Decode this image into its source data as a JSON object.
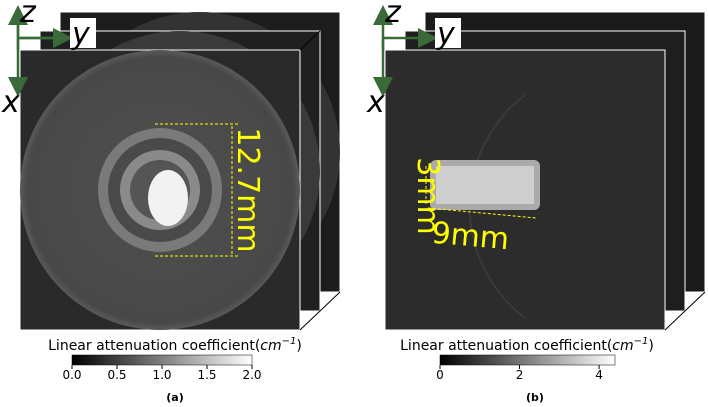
{
  "panels": [
    {
      "caption": "(a)",
      "axes": {
        "z": "z",
        "y": "y",
        "x": "x"
      },
      "annotations": [
        "12.7mm"
      ],
      "colorbar": {
        "label": "Linear attenuation coefficient(",
        "unit": "cm",
        "exponent": "−1",
        "close": ")",
        "lim": [
          0,
          2
        ],
        "ticks": [
          {
            "value": 0,
            "label": "0.0"
          },
          {
            "value": 0.5,
            "label": "0.5"
          },
          {
            "value": 1,
            "label": "1.0"
          },
          {
            "value": 1.5,
            "label": "1.5"
          },
          {
            "value": 2,
            "label": "2.0"
          }
        ]
      }
    },
    {
      "caption": "(b)",
      "axes": {
        "z": "z",
        "y": "y",
        "x": "x"
      },
      "annotations": [
        "3mm",
        "9mm"
      ],
      "colorbar": {
        "label": "Linear attenuation coefficient(",
        "unit": "cm",
        "exponent": "−1",
        "close": ")",
        "lim": [
          0,
          4.4
        ],
        "ticks": [
          0,
          2,
          4
        ]
      }
    }
  ]
}
